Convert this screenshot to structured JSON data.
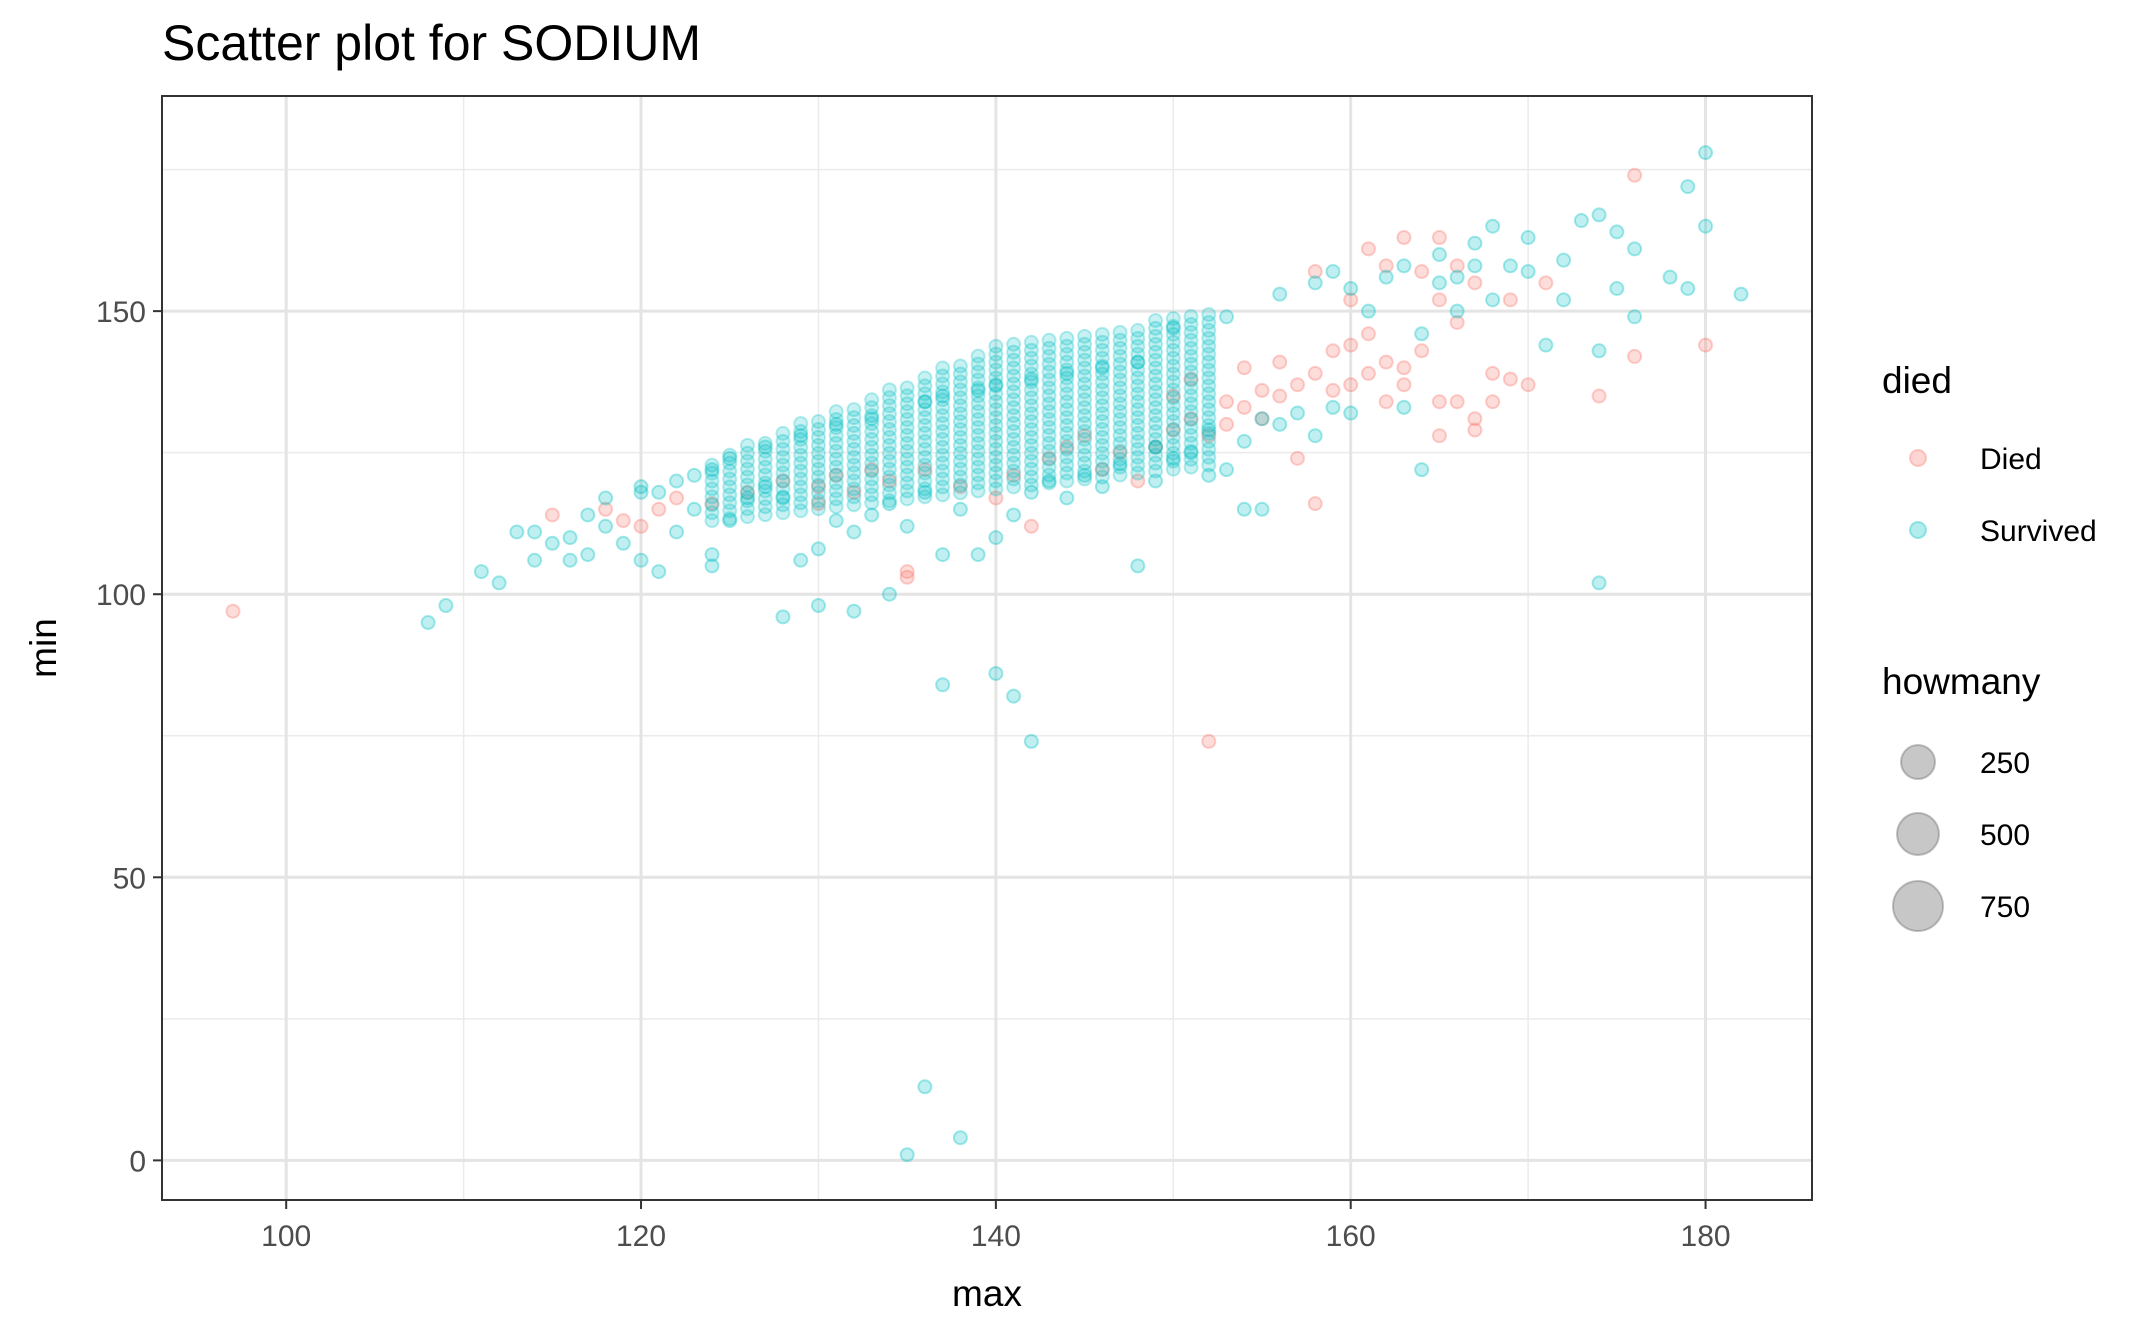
{
  "chart_data": {
    "type": "scatter",
    "title": "Scatter plot for SODIUM",
    "xlabel": "max",
    "ylabel": "min",
    "xlim": [
      93,
      186
    ],
    "ylim": [
      -7,
      188
    ],
    "x_ticks": [
      100,
      120,
      140,
      160,
      180
    ],
    "y_ticks": [
      0,
      50,
      100,
      150
    ],
    "x_tick_labels": [
      "100",
      "120",
      "140",
      "160",
      "180"
    ],
    "y_tick_labels": [
      "0",
      "50",
      "100",
      "150"
    ],
    "grid": true,
    "legend_position": "right",
    "color_legend": {
      "title": "died",
      "entries": [
        {
          "label": "Died",
          "color": "#F8766D"
        },
        {
          "label": "Survived",
          "color": "#00BFC4"
        }
      ]
    },
    "size_legend": {
      "title": "howmany",
      "entries": [
        {
          "label": "250",
          "value": 250
        },
        {
          "label": "500",
          "value": 500
        },
        {
          "label": "750",
          "value": 750
        }
      ]
    },
    "series": [
      {
        "name": "Died",
        "color": "#F8766D",
        "points": [
          [
            97,
            97
          ],
          [
            115,
            114
          ],
          [
            118,
            115
          ],
          [
            119,
            113
          ],
          [
            120,
            112
          ],
          [
            121,
            115
          ],
          [
            122,
            117
          ],
          [
            124,
            116
          ],
          [
            126,
            118
          ],
          [
            128,
            120
          ],
          [
            130,
            119
          ],
          [
            130,
            116
          ],
          [
            131,
            121
          ],
          [
            132,
            118
          ],
          [
            133,
            122
          ],
          [
            134,
            120
          ],
          [
            135,
            104
          ],
          [
            135,
            103
          ],
          [
            136,
            122
          ],
          [
            138,
            119
          ],
          [
            140,
            117
          ],
          [
            141,
            121
          ],
          [
            142,
            112
          ],
          [
            143,
            124
          ],
          [
            144,
            126
          ],
          [
            145,
            128
          ],
          [
            146,
            122
          ],
          [
            147,
            125
          ],
          [
            148,
            120
          ],
          [
            149,
            126
          ],
          [
            150,
            129
          ],
          [
            150,
            135
          ],
          [
            151,
            131
          ],
          [
            151,
            138
          ],
          [
            152,
            128
          ],
          [
            152,
            74
          ],
          [
            153,
            130
          ],
          [
            153,
            134
          ],
          [
            154,
            133
          ],
          [
            154,
            140
          ],
          [
            155,
            131
          ],
          [
            155,
            136
          ],
          [
            156,
            135
          ],
          [
            156,
            141
          ],
          [
            157,
            124
          ],
          [
            157,
            137
          ],
          [
            158,
            116
          ],
          [
            158,
            139
          ],
          [
            158,
            157
          ],
          [
            159,
            136
          ],
          [
            159,
            143
          ],
          [
            160,
            137
          ],
          [
            160,
            144
          ],
          [
            160,
            152
          ],
          [
            161,
            139
          ],
          [
            161,
            146
          ],
          [
            161,
            161
          ],
          [
            162,
            134
          ],
          [
            162,
            141
          ],
          [
            162,
            158
          ],
          [
            163,
            137
          ],
          [
            163,
            140
          ],
          [
            163,
            163
          ],
          [
            164,
            143
          ],
          [
            164,
            157
          ],
          [
            165,
            128
          ],
          [
            165,
            134
          ],
          [
            165,
            152
          ],
          [
            165,
            163
          ],
          [
            166,
            134
          ],
          [
            166,
            148
          ],
          [
            166,
            158
          ],
          [
            167,
            129
          ],
          [
            167,
            131
          ],
          [
            167,
            155
          ],
          [
            168,
            139
          ],
          [
            168,
            134
          ],
          [
            169,
            138
          ],
          [
            169,
            152
          ],
          [
            170,
            137
          ],
          [
            171,
            155
          ],
          [
            174,
            135
          ],
          [
            176,
            174
          ],
          [
            176,
            142
          ],
          [
            180,
            144
          ]
        ]
      },
      {
        "name": "Survived",
        "color": "#00BFC4",
        "points": [
          [
            108,
            95
          ],
          [
            109,
            98
          ],
          [
            111,
            104
          ],
          [
            112,
            102
          ],
          [
            113,
            111
          ],
          [
            114,
            106
          ],
          [
            114,
            111
          ],
          [
            115,
            109
          ],
          [
            116,
            110
          ],
          [
            116,
            106
          ],
          [
            117,
            114
          ],
          [
            117,
            107
          ],
          [
            118,
            112
          ],
          [
            118,
            117
          ],
          [
            119,
            109
          ],
          [
            120,
            106
          ],
          [
            120,
            118
          ],
          [
            120,
            119
          ],
          [
            121,
            104
          ],
          [
            121,
            118
          ],
          [
            122,
            111
          ],
          [
            122,
            120
          ],
          [
            123,
            115
          ],
          [
            123,
            121
          ],
          [
            124,
            107
          ],
          [
            124,
            105
          ],
          [
            124,
            122
          ],
          [
            125,
            113
          ],
          [
            125,
            124
          ],
          [
            126,
            117
          ],
          [
            127,
            119
          ],
          [
            127,
            126
          ],
          [
            128,
            96
          ],
          [
            128,
            117
          ],
          [
            129,
            106
          ],
          [
            129,
            128
          ],
          [
            130,
            98
          ],
          [
            130,
            108
          ],
          [
            131,
            113
          ],
          [
            131,
            130
          ],
          [
            132,
            97
          ],
          [
            132,
            111
          ],
          [
            133,
            114
          ],
          [
            133,
            131
          ],
          [
            134,
            100
          ],
          [
            134,
            116
          ],
          [
            135,
            1
          ],
          [
            135,
            112
          ],
          [
            136,
            13
          ],
          [
            136,
            118
          ],
          [
            136,
            134
          ],
          [
            137,
            84
          ],
          [
            137,
            107
          ],
          [
            137,
            135
          ],
          [
            138,
            4
          ],
          [
            138,
            115
          ],
          [
            139,
            107
          ],
          [
            139,
            136
          ],
          [
            140,
            86
          ],
          [
            140,
            110
          ],
          [
            140,
            137
          ],
          [
            141,
            82
          ],
          [
            141,
            114
          ],
          [
            142,
            74
          ],
          [
            142,
            118
          ],
          [
            142,
            138
          ],
          [
            143,
            120
          ],
          [
            144,
            117
          ],
          [
            144,
            139
          ],
          [
            145,
            121
          ],
          [
            146,
            119
          ],
          [
            146,
            140
          ],
          [
            147,
            123
          ],
          [
            148,
            105
          ],
          [
            148,
            141
          ],
          [
            149,
            120
          ],
          [
            149,
            126
          ],
          [
            150,
            124
          ],
          [
            150,
            147
          ],
          [
            151,
            125
          ],
          [
            152,
            121
          ],
          [
            152,
            129
          ],
          [
            153,
            122
          ],
          [
            153,
            149
          ],
          [
            154,
            115
          ],
          [
            154,
            127
          ],
          [
            155,
            115
          ],
          [
            155,
            131
          ],
          [
            156,
            130
          ],
          [
            156,
            153
          ],
          [
            157,
            132
          ],
          [
            158,
            128
          ],
          [
            158,
            155
          ],
          [
            159,
            133
          ],
          [
            159,
            157
          ],
          [
            160,
            132
          ],
          [
            160,
            154
          ],
          [
            161,
            150
          ],
          [
            162,
            156
          ],
          [
            163,
            133
          ],
          [
            163,
            158
          ],
          [
            164,
            122
          ],
          [
            164,
            146
          ],
          [
            165,
            155
          ],
          [
            165,
            160
          ],
          [
            166,
            150
          ],
          [
            166,
            156
          ],
          [
            167,
            158
          ],
          [
            167,
            162
          ],
          [
            168,
            152
          ],
          [
            168,
            165
          ],
          [
            169,
            158
          ],
          [
            170,
            157
          ],
          [
            170,
            163
          ],
          [
            171,
            144
          ],
          [
            172,
            152
          ],
          [
            172,
            159
          ],
          [
            173,
            166
          ],
          [
            174,
            102
          ],
          [
            174,
            143
          ],
          [
            174,
            167
          ],
          [
            175,
            154
          ],
          [
            175,
            164
          ],
          [
            176,
            149
          ],
          [
            176,
            161
          ],
          [
            178,
            156
          ],
          [
            179,
            154
          ],
          [
            179,
            172
          ],
          [
            180,
            165
          ],
          [
            180,
            178
          ],
          [
            182,
            153
          ]
        ]
      }
    ]
  }
}
